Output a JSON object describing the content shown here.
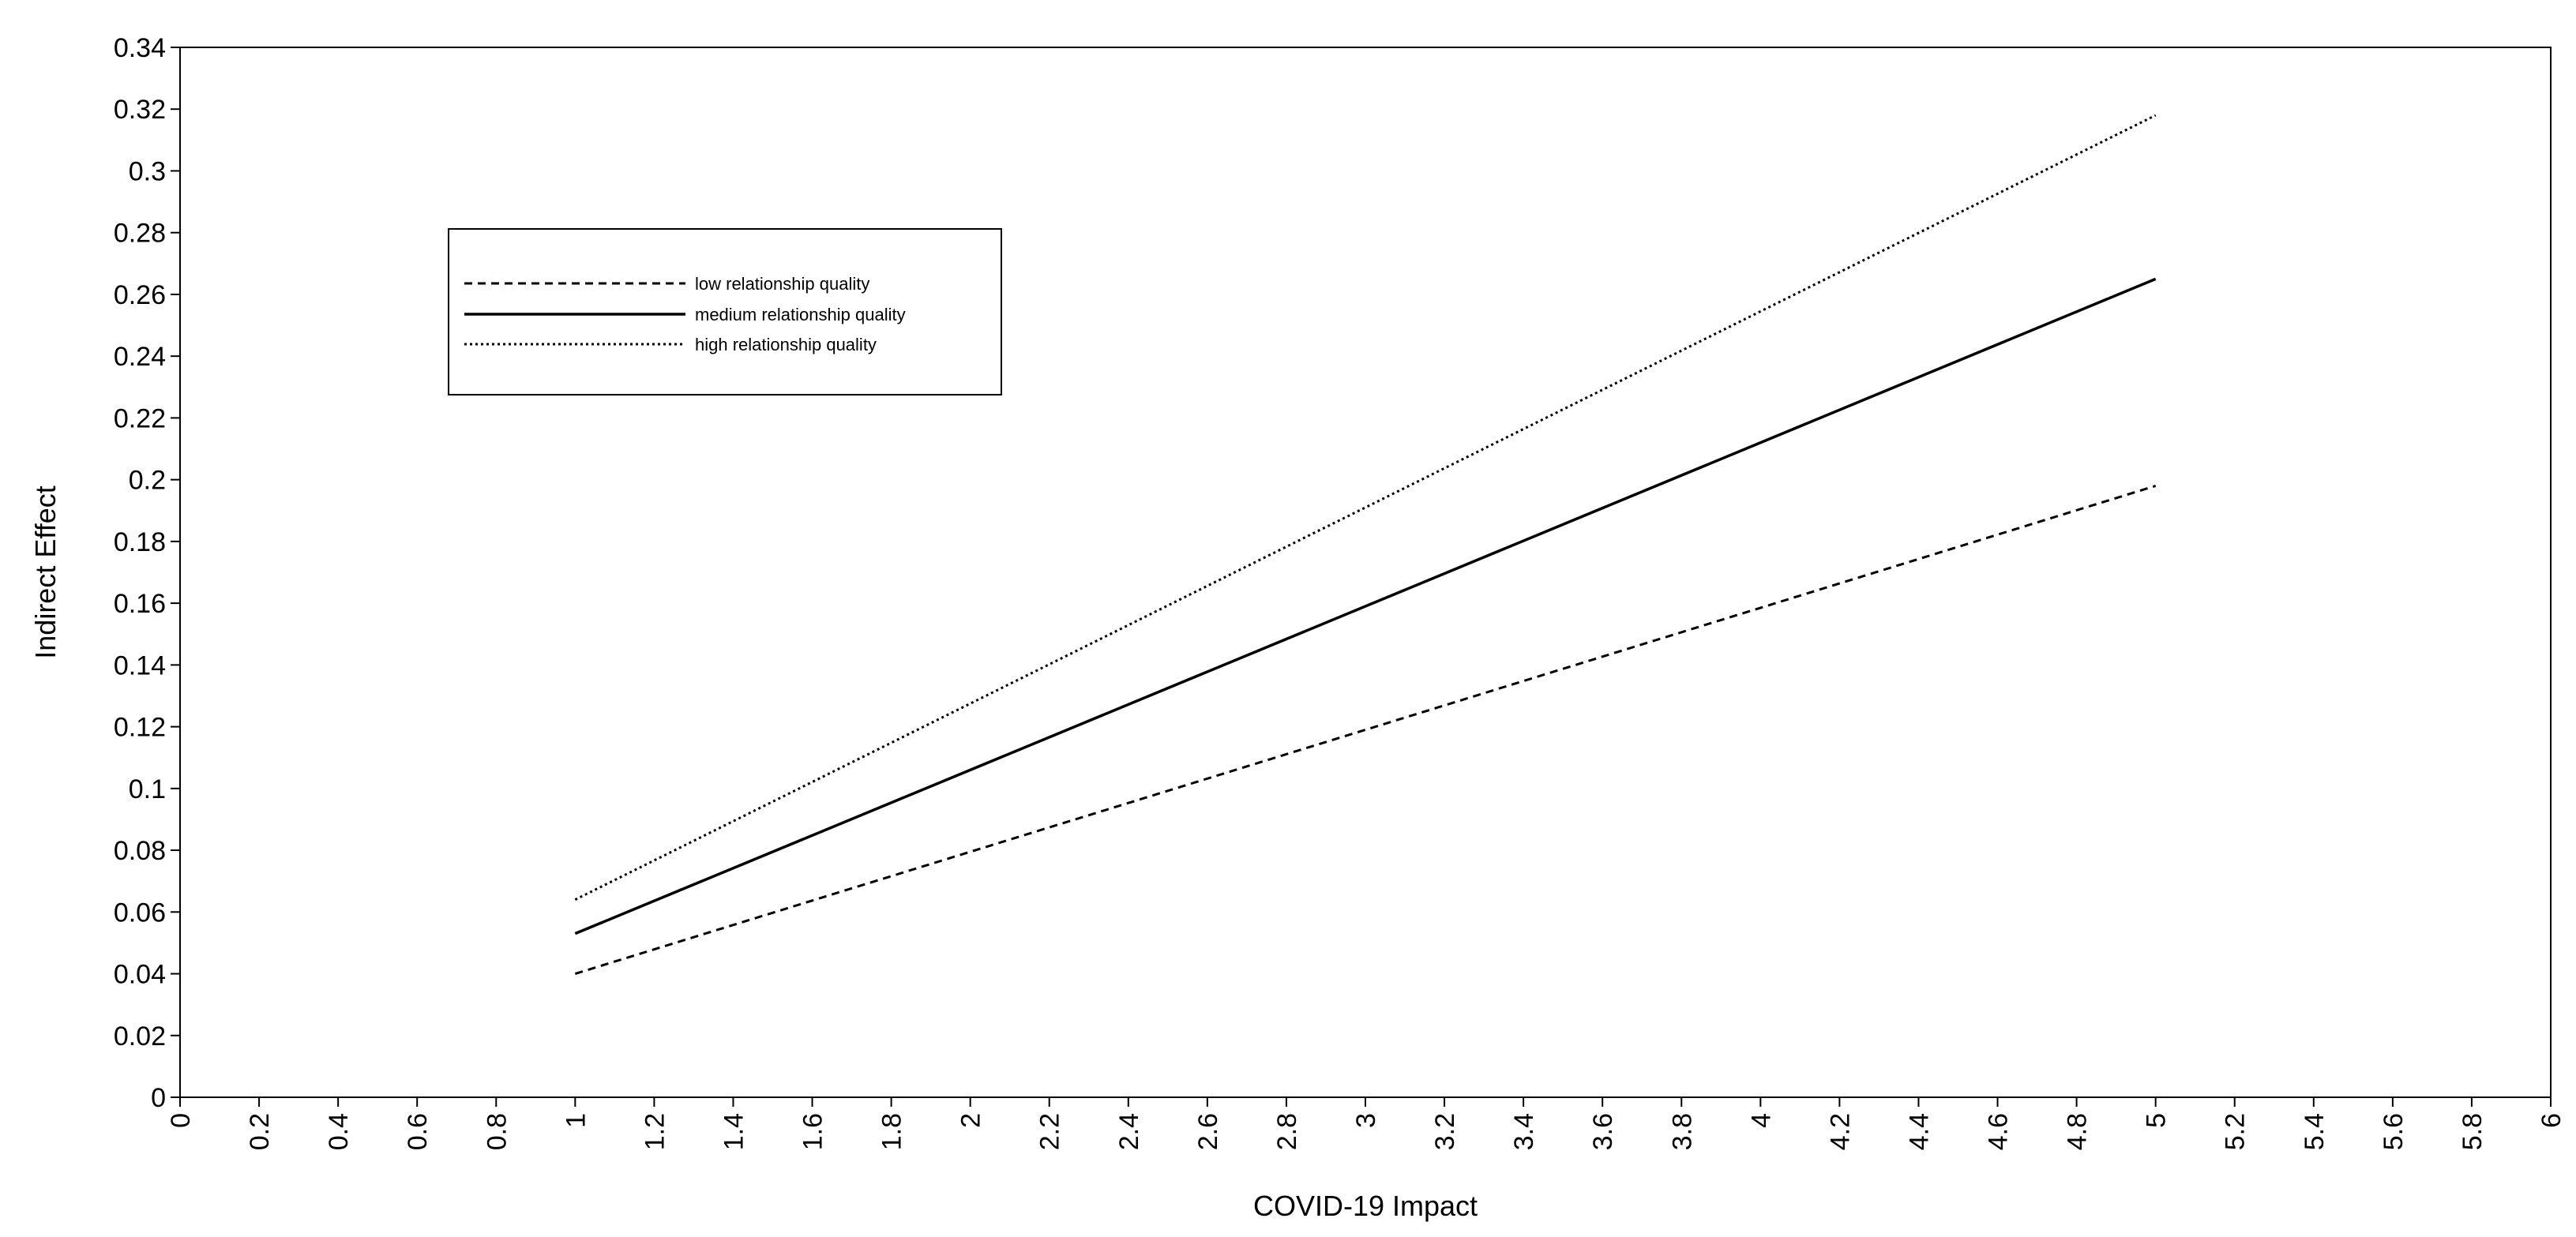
{
  "chart_data": {
    "type": "line",
    "xlabel": "COVID-19 Impact",
    "ylabel": "Indirect Effect",
    "xlim": [
      0,
      6
    ],
    "ylim": [
      0,
      0.34
    ],
    "x_ticks": [
      "0",
      "0.2",
      "0.4",
      "0.6",
      "0.8",
      "1",
      "1.2",
      "1.4",
      "1.6",
      "1.8",
      "2",
      "2.2",
      "2.4",
      "2.6",
      "2.8",
      "3",
      "3.2",
      "3.4",
      "3.6",
      "3.8",
      "4",
      "4.2",
      "4.4",
      "4.6",
      "4.8",
      "5",
      "5.2",
      "5.4",
      "5.6",
      "5.8",
      "6"
    ],
    "y_ticks": [
      "0",
      "0.02",
      "0.04",
      "0.06",
      "0.08",
      "0.1",
      "0.12",
      "0.14",
      "0.16",
      "0.18",
      "0.2",
      "0.22",
      "0.24",
      "0.26",
      "0.28",
      "0.3",
      "0.32",
      "0.34"
    ],
    "grid": false,
    "legend_position": "top-left",
    "series": [
      {
        "name": "low relationship quality",
        "dash": "dashed",
        "x": [
          1,
          5
        ],
        "y": [
          0.04,
          0.198
        ]
      },
      {
        "name": "medium relationship quality",
        "dash": "solid",
        "x": [
          1,
          5
        ],
        "y": [
          0.053,
          0.265
        ]
      },
      {
        "name": "high relationship quality",
        "dash": "dotted",
        "x": [
          1,
          5
        ],
        "y": [
          0.064,
          0.318
        ]
      }
    ],
    "colors": {
      "line": "#000000",
      "axis": "#000000",
      "background": "#ffffff"
    }
  }
}
